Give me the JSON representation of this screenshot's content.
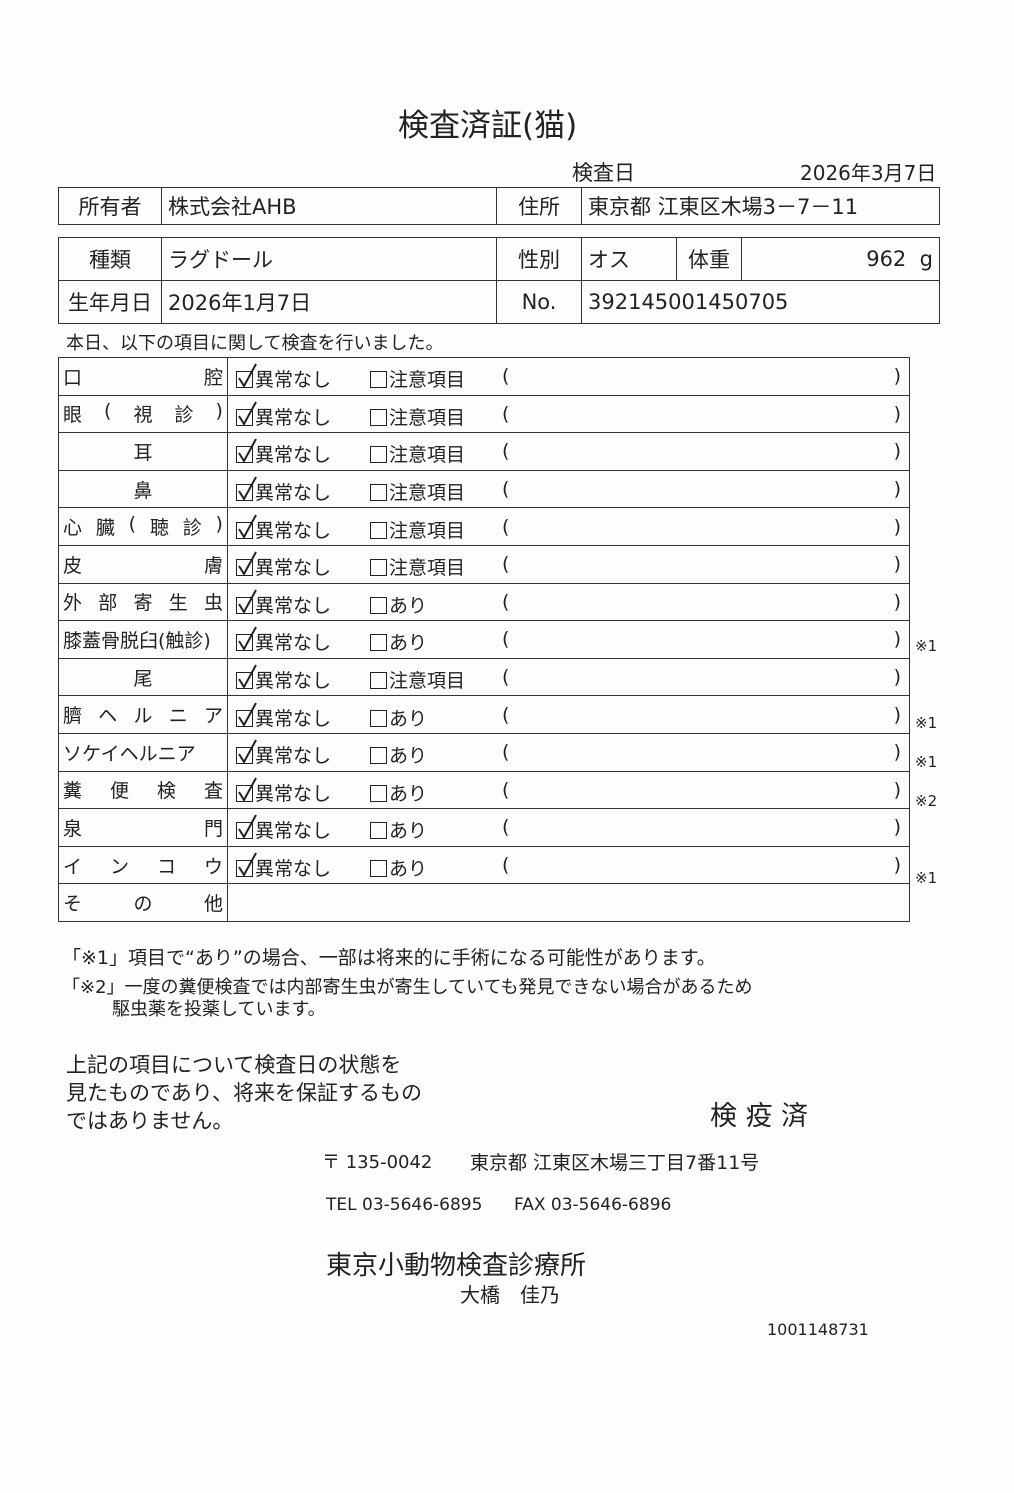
{
  "title": "検査済証(猫)",
  "exam_date_label": "検査日",
  "exam_date": "2026年3月7日",
  "owner": {
    "label": "所有者",
    "value": "株式会社AHB"
  },
  "address": {
    "label": "住所",
    "value": "東京都 江東区木場3－7－11"
  },
  "breed": {
    "label": "種類",
    "value": "ラグドール"
  },
  "sex": {
    "label": "性別",
    "value": "オス"
  },
  "weight": {
    "label": "体重",
    "value": "962",
    "unit": "g"
  },
  "birth": {
    "label": "生年月日",
    "value": "2026年1月7日"
  },
  "number": {
    "label": "No.",
    "value": "392145001450705"
  },
  "intro": "本日、以下の項目に関して検査を行いました。",
  "normal_label": "異常なし",
  "paren_open": "(",
  "paren_close": ")",
  "items": [
    {
      "label": [
        "口",
        "腔"
      ],
      "opt2": "注意項目",
      "note": "",
      "checked": true
    },
    {
      "label": [
        "眼",
        "(",
        "視",
        "診",
        ")"
      ],
      "opt2": "注意項目",
      "note": "",
      "checked": true
    },
    {
      "label": [
        "耳"
      ],
      "center": true,
      "opt2": "注意項目",
      "note": "",
      "checked": true
    },
    {
      "label": [
        "鼻"
      ],
      "center": true,
      "opt2": "注意項目",
      "note": "",
      "checked": true
    },
    {
      "label": [
        "心",
        "臓",
        "(",
        "聴",
        "診",
        ")"
      ],
      "opt2": "注意項目",
      "note": "",
      "checked": true
    },
    {
      "label": [
        "皮",
        "膚"
      ],
      "opt2": "注意項目",
      "note": "",
      "checked": true
    },
    {
      "label": [
        "外",
        "部",
        "寄",
        "生",
        "虫"
      ],
      "opt2": "あり",
      "note": "",
      "checked": true
    },
    {
      "label": [
        "膝蓋骨脱臼(触診)"
      ],
      "opt2": "あり",
      "note": "※1",
      "checked": true
    },
    {
      "label": [
        "尾"
      ],
      "center": true,
      "opt2": "注意項目",
      "note": "",
      "checked": true
    },
    {
      "label": [
        "臍",
        "ヘ",
        "ル",
        "ニ",
        "ア"
      ],
      "opt2": "あり",
      "note": "※1",
      "checked": true
    },
    {
      "label": [
        "ソケイヘルニア"
      ],
      "opt2": "あり",
      "note": "※1",
      "checked": true
    },
    {
      "label": [
        "糞",
        "便",
        "検",
        "査"
      ],
      "opt2": "あり",
      "note": "※2",
      "checked": true
    },
    {
      "label": [
        "泉",
        "門"
      ],
      "opt2": "あり",
      "note": "",
      "checked": true
    },
    {
      "label": [
        "イ",
        "ン",
        "コ",
        "ウ"
      ],
      "opt2": "あり",
      "note": "※1",
      "checked": true
    }
  ],
  "other_label": [
    "そ",
    "の",
    "他"
  ],
  "footnote1": "「※1」項目で“あり”の場合、一部は将来的に手術になる可能性があります。",
  "footnote2a": "「※2」一度の糞便検査では内部寄生虫が寄生していても発見できない場合があるため",
  "footnote2b": "駆虫薬を投薬しています。",
  "disclaimer": [
    "上記の項目について検査日の状態を",
    "見たものであり、将来を保証するもの",
    "ではありません。"
  ],
  "stamp": "検 疫 済",
  "postal": "〒 135-0042",
  "clinic_address": "東京都 江東区木場三丁目7番11号",
  "tel": "TEL 03-5646-6895",
  "fax": "FAX 03-5646-6896",
  "clinic_name": "東京小動物検査診療所",
  "doctor": "大橋　佳乃",
  "serial": "1001148731"
}
